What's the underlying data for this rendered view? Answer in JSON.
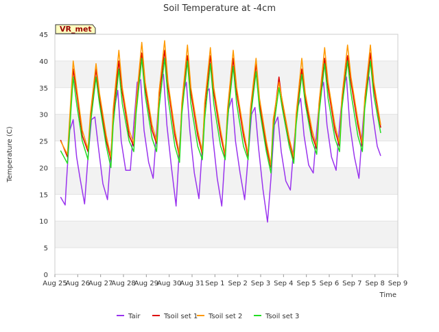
{
  "chart_data": {
    "type": "line",
    "title": "Soil Temperature at -4cm",
    "xlabel": "Time",
    "ylabel": "Temperature (C)",
    "ylim": [
      0,
      45
    ],
    "yticks": [
      0,
      5,
      10,
      15,
      20,
      25,
      30,
      35,
      40,
      45
    ],
    "xlim": [
      0,
      15
    ],
    "xticks": [
      {
        "x": 0,
        "label": "Aug 25"
      },
      {
        "x": 1,
        "label": "Aug 26"
      },
      {
        "x": 2,
        "label": "Aug 27"
      },
      {
        "x": 3,
        "label": "Aug 28"
      },
      {
        "x": 4,
        "label": "Aug 29"
      },
      {
        "x": 5,
        "label": "Aug 30"
      },
      {
        "x": 6,
        "label": "Aug 31"
      },
      {
        "x": 7,
        "label": "Sep 1"
      },
      {
        "x": 8,
        "label": "Sep 2"
      },
      {
        "x": 9,
        "label": "Sep 3"
      },
      {
        "x": 10,
        "label": "Sep 4"
      },
      {
        "x": 11,
        "label": "Sep 5"
      },
      {
        "x": 12,
        "label": "Sep 6"
      },
      {
        "x": 13,
        "label": "Sep 7"
      },
      {
        "x": 14,
        "label": "Sep 8"
      },
      {
        "x": 15,
        "label": "Sep 9"
      }
    ],
    "grid": true,
    "legend_position": "bottom",
    "annotation": "VR_met",
    "series": [
      {
        "name": "Tair",
        "color": "#9933ee",
        "x": [
          0.25,
          0.45,
          0.5,
          0.65,
          0.8,
          0.95,
          1.1,
          1.3,
          1.45,
          1.6,
          1.75,
          1.9,
          2.1,
          2.3,
          2.45,
          2.6,
          2.75,
          2.9,
          3.1,
          3.3,
          3.45,
          3.6,
          3.75,
          3.9,
          4.1,
          4.3,
          4.45,
          4.6,
          4.75,
          4.9,
          5.1,
          5.3,
          5.45,
          5.6,
          5.75,
          5.9,
          6.1,
          6.3,
          6.45,
          6.6,
          6.75,
          6.9,
          7.1,
          7.3,
          7.45,
          7.6,
          7.75,
          7.9,
          8.1,
          8.3,
          8.45,
          8.6,
          8.75,
          8.9,
          9.1,
          9.3,
          9.45,
          9.6,
          9.75,
          9.9,
          10.1,
          10.3,
          10.45,
          10.6,
          10.75,
          10.9,
          11.1,
          11.3,
          11.45,
          11.6,
          11.75,
          11.9,
          12.1,
          12.3,
          12.45,
          12.6,
          12.75,
          12.9,
          13.1,
          13.3,
          13.45,
          13.6,
          13.75,
          13.9,
          14.1,
          14.25
        ],
        "y": [
          14.5,
          13.0,
          17.0,
          27.0,
          29.0,
          22.0,
          18.0,
          13.2,
          22.0,
          29.0,
          29.5,
          24.0,
          17.0,
          14.0,
          23.0,
          31.0,
          34.5,
          25.0,
          19.5,
          19.5,
          28.0,
          36.0,
          36.5,
          27.0,
          21.0,
          18.0,
          27.0,
          36.0,
          37.5,
          28.0,
          20.0,
          12.8,
          24.0,
          34.0,
          36.0,
          27.0,
          19.0,
          14.2,
          24.0,
          34.0,
          34.8,
          26.0,
          18.0,
          12.8,
          23.0,
          31.0,
          33.0,
          25.0,
          19.0,
          14.0,
          22.0,
          30.0,
          31.3,
          24.0,
          16.0,
          9.8,
          18.0,
          28.0,
          29.5,
          23.0,
          17.5,
          15.8,
          24.0,
          31.0,
          33.0,
          26.0,
          20.5,
          19.0,
          27.0,
          34.0,
          36.0,
          28.0,
          22.0,
          19.5,
          28.0,
          35.0,
          37.0,
          28.0,
          22.0,
          18.0,
          27.0,
          35.0,
          37.0,
          30.0,
          24.0,
          22.2
        ]
      },
      {
        "name": "Tsoil set 1",
        "color": "#dd0000",
        "x": [
          0.25,
          0.55,
          0.8,
          0.95,
          1.2,
          1.45,
          1.55,
          1.8,
          1.95,
          2.25,
          2.45,
          2.55,
          2.8,
          2.95,
          3.25,
          3.45,
          3.55,
          3.8,
          3.95,
          4.25,
          4.45,
          4.55,
          4.8,
          4.95,
          5.25,
          5.45,
          5.55,
          5.8,
          5.95,
          6.25,
          6.45,
          6.55,
          6.8,
          6.95,
          7.25,
          7.45,
          7.55,
          7.8,
          7.95,
          8.25,
          8.45,
          8.55,
          8.8,
          8.95,
          9.25,
          9.45,
          9.55,
          9.8,
          9.95,
          10.25,
          10.45,
          10.55,
          10.8,
          10.95,
          11.25,
          11.45,
          11.55,
          11.8,
          11.95,
          12.25,
          12.45,
          12.55,
          12.8,
          12.95,
          13.25,
          13.45,
          13.55,
          13.8,
          13.95,
          14.25
        ],
        "y": [
          25.2,
          22.0,
          38.5,
          34.0,
          26.0,
          23.0,
          29.0,
          38.5,
          33.0,
          25.0,
          21.5,
          30.0,
          40.0,
          34.0,
          26.0,
          24.0,
          31.0,
          41.5,
          35.0,
          27.0,
          24.5,
          33.0,
          42.0,
          35.0,
          26.0,
          22.0,
          31.0,
          41.0,
          34.0,
          26.0,
          22.5,
          31.0,
          41.0,
          34.0,
          26.0,
          22.0,
          30.0,
          40.5,
          34.0,
          26.0,
          22.0,
          30.0,
          39.5,
          32.0,
          24.0,
          20.0,
          28.0,
          37.0,
          32.0,
          25.0,
          21.5,
          29.0,
          38.5,
          33.0,
          26.0,
          23.5,
          31.0,
          40.5,
          35.0,
          27.0,
          24.0,
          32.0,
          41.0,
          36.0,
          28.0,
          24.0,
          32.0,
          41.5,
          35.0,
          27.5
        ]
      },
      {
        "name": "Tsoil set 2",
        "color": "#ff9900",
        "x": [
          0.25,
          0.55,
          0.8,
          0.95,
          1.2,
          1.45,
          1.55,
          1.8,
          1.95,
          2.25,
          2.45,
          2.55,
          2.8,
          2.95,
          3.25,
          3.45,
          3.55,
          3.8,
          3.95,
          4.25,
          4.45,
          4.55,
          4.8,
          4.95,
          5.25,
          5.45,
          5.55,
          5.8,
          5.95,
          6.25,
          6.45,
          6.55,
          6.8,
          6.95,
          7.25,
          7.45,
          7.55,
          7.8,
          7.95,
          8.25,
          8.45,
          8.55,
          8.8,
          8.95,
          9.25,
          9.45,
          9.55,
          9.8,
          9.95,
          10.25,
          10.45,
          10.55,
          10.8,
          10.95,
          11.25,
          11.45,
          11.55,
          11.8,
          11.95,
          12.25,
          12.45,
          12.55,
          12.8,
          12.95,
          13.25,
          13.45,
          13.55,
          13.8,
          13.95,
          14.25
        ],
        "y": [
          25.0,
          22.5,
          40.0,
          35.0,
          27.0,
          23.5,
          30.0,
          39.5,
          34.0,
          26.0,
          22.0,
          31.0,
          42.0,
          35.0,
          27.0,
          24.5,
          32.0,
          43.5,
          36.0,
          28.0,
          25.0,
          34.0,
          43.8,
          36.0,
          27.0,
          22.5,
          32.0,
          43.0,
          35.0,
          27.0,
          23.0,
          32.0,
          42.5,
          35.0,
          27.0,
          22.5,
          31.0,
          42.0,
          35.0,
          27.0,
          22.5,
          31.0,
          40.5,
          33.0,
          25.0,
          20.5,
          29.0,
          36.0,
          32.5,
          25.5,
          22.0,
          30.0,
          40.5,
          34.0,
          27.0,
          24.0,
          32.0,
          42.5,
          36.0,
          28.0,
          24.5,
          33.0,
          43.0,
          37.0,
          29.0,
          24.5,
          33.0,
          43.0,
          36.0,
          28.0
        ]
      },
      {
        "name": "Tsoil set 3",
        "color": "#22dd22",
        "x": [
          0.25,
          0.55,
          0.8,
          0.95,
          1.2,
          1.45,
          1.55,
          1.8,
          1.95,
          2.25,
          2.45,
          2.55,
          2.8,
          2.95,
          3.25,
          3.45,
          3.55,
          3.8,
          3.95,
          4.25,
          4.45,
          4.55,
          4.8,
          4.95,
          5.25,
          5.45,
          5.55,
          5.8,
          5.95,
          6.25,
          6.45,
          6.55,
          6.8,
          6.95,
          7.25,
          7.45,
          7.55,
          7.8,
          7.95,
          8.25,
          8.45,
          8.55,
          8.8,
          8.95,
          9.25,
          9.45,
          9.55,
          9.8,
          9.95,
          10.25,
          10.45,
          10.55,
          10.8,
          10.95,
          11.25,
          11.45,
          11.55,
          11.8,
          11.95,
          12.25,
          12.45,
          12.55,
          12.8,
          12.95,
          13.25,
          13.45,
          13.55,
          13.8,
          13.95,
          14.25
        ],
        "y": [
          23.2,
          20.8,
          37.0,
          32.0,
          25.0,
          21.5,
          28.0,
          37.0,
          32.0,
          24.0,
          20.0,
          28.0,
          38.5,
          32.0,
          25.0,
          23.0,
          30.0,
          40.5,
          33.5,
          25.5,
          23.0,
          31.0,
          40.5,
          33.0,
          24.0,
          21.0,
          30.0,
          40.0,
          32.0,
          24.0,
          21.5,
          29.0,
          39.5,
          32.0,
          24.0,
          21.5,
          29.0,
          39.0,
          32.0,
          24.0,
          21.5,
          29.0,
          38.0,
          31.0,
          23.0,
          19.0,
          27.0,
          35.0,
          31.0,
          24.0,
          20.8,
          28.0,
          37.5,
          32.0,
          25.0,
          22.5,
          30.0,
          39.5,
          33.0,
          25.5,
          23.0,
          31.0,
          40.0,
          34.0,
          26.0,
          23.0,
          31.0,
          40.0,
          33.5,
          26.5
        ]
      }
    ]
  }
}
